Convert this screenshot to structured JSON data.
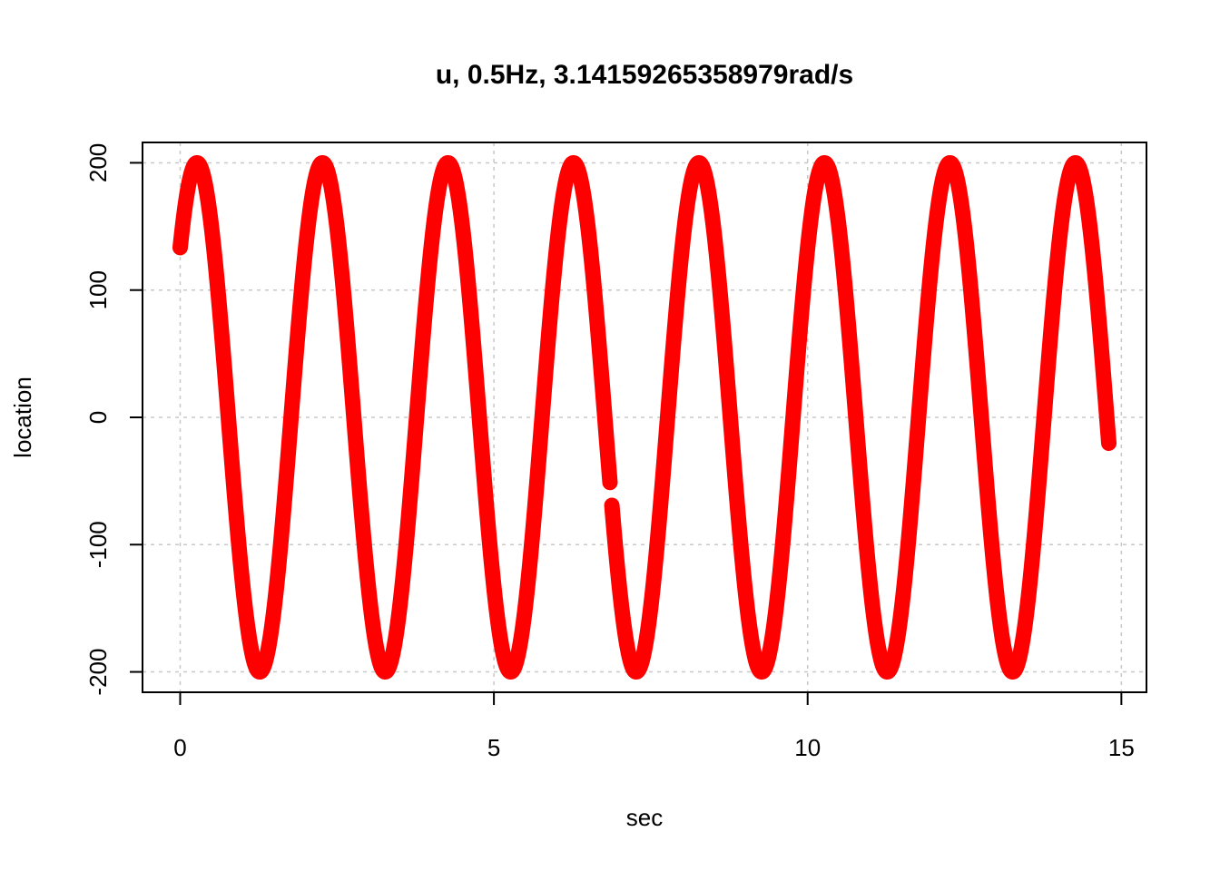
{
  "chart_data": {
    "type": "scatter",
    "title": "u, 0.5Hz, 3.14159265358979rad/s",
    "xlabel": "sec",
    "ylabel": "location",
    "xlim": [
      -0.6,
      15.4
    ],
    "ylim": [
      -216,
      216
    ],
    "xticks": [
      0,
      5,
      10,
      15
    ],
    "xtick_labels": [
      "0",
      "5",
      "10",
      "15"
    ],
    "yticks": [
      -200,
      -100,
      0,
      100,
      200
    ],
    "ytick_labels": [
      "-200",
      "-100",
      "0",
      "100",
      "200"
    ],
    "grid": true,
    "series": [
      {
        "amplitude": 200,
        "frequency_hz": 0.5,
        "angular_frequency_rad_s": 3.14159265358979,
        "phase_rad": 0.73,
        "x_start": 0,
        "x_end": 14.8,
        "gap_x": [
          6.85,
          6.88
        ],
        "color": "#ff0000"
      }
    ]
  }
}
